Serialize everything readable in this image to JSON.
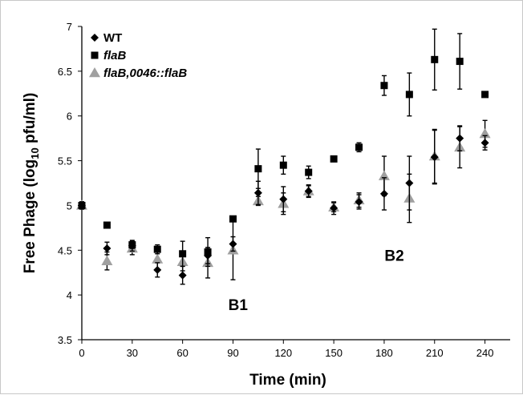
{
  "chart_data": {
    "type": "scatter",
    "xlabel": "Time (min)",
    "ylabel_main": "Free Phage (log",
    "ylabel_sub": "10",
    "ylabel_end": " pfu/ml)",
    "xlim": [
      0,
      255
    ],
    "ylim": [
      3.5,
      7
    ],
    "xticks": [
      "0",
      "30",
      "60",
      "90",
      "120",
      "150",
      "180",
      "210",
      "240"
    ],
    "yticks": [
      "3.5",
      "4",
      "4.5",
      "5",
      "5.5",
      "6",
      "6.5",
      "7"
    ],
    "grid": false,
    "legend_position": "top-left",
    "annotations": [
      {
        "text": "B1",
        "x": 93,
        "y": 3.83
      },
      {
        "text": "B2",
        "x": 186,
        "y": 4.38
      }
    ],
    "series": [
      {
        "name": "WT",
        "marker": "diamond",
        "italic": false,
        "color": "#000000",
        "x": [
          0,
          15,
          30,
          45,
          60,
          75,
          90,
          105,
          120,
          135,
          150,
          165,
          180,
          195,
          210,
          225,
          240
        ],
        "y": [
          5.0,
          4.52,
          4.55,
          4.28,
          4.22,
          4.44,
          4.57,
          5.14,
          5.07,
          5.16,
          4.97,
          5.04,
          5.13,
          5.25,
          5.54,
          5.75,
          5.7
        ],
        "err": [
          0.04,
          0.07,
          0.06,
          0.08,
          0.1,
          0.09,
          0.08,
          0.13,
          0.14,
          0.06,
          0.07,
          0.08,
          0.18,
          0.3,
          0.3,
          0.14,
          0.08
        ]
      },
      {
        "name": "flaB",
        "marker": "square",
        "italic": true,
        "color": "#000000",
        "x": [
          0,
          15,
          30,
          45,
          60,
          75,
          90,
          105,
          120,
          135,
          150,
          165,
          180,
          195,
          210,
          225,
          240
        ],
        "y": [
          5.0,
          4.78,
          4.56,
          4.51,
          4.46,
          4.48,
          4.85,
          5.41,
          5.45,
          5.37,
          5.52,
          5.65,
          6.34,
          6.24,
          6.63,
          6.61,
          6.24
        ],
        "err": [
          0.04,
          0.0,
          0.04,
          0.05,
          0.14,
          0.16,
          0.0,
          0.22,
          0.1,
          0.07,
          0.03,
          0.05,
          0.11,
          0.24,
          0.34,
          0.31,
          0.0
        ]
      },
      {
        "name": "flaB,0046::flaB",
        "marker": "triangle",
        "italic": true,
        "color": "#a0a0a0",
        "x": [
          0,
          15,
          30,
          45,
          60,
          75,
          90,
          105,
          120,
          135,
          150,
          165,
          180,
          195,
          210,
          225,
          240
        ],
        "y": [
          5.0,
          4.38,
          4.52,
          4.4,
          4.37,
          4.36,
          4.5,
          5.05,
          5.02,
          5.16,
          4.98,
          5.06,
          5.33,
          5.08,
          5.55,
          5.65,
          5.8
        ],
        "err": [
          0.04,
          0.1,
          0.07,
          0.12,
          0.1,
          0.17,
          0.33,
          0.05,
          0.12,
          0.07,
          0.05,
          0.08,
          0.22,
          0.27,
          0.3,
          0.23,
          0.15
        ]
      }
    ]
  }
}
